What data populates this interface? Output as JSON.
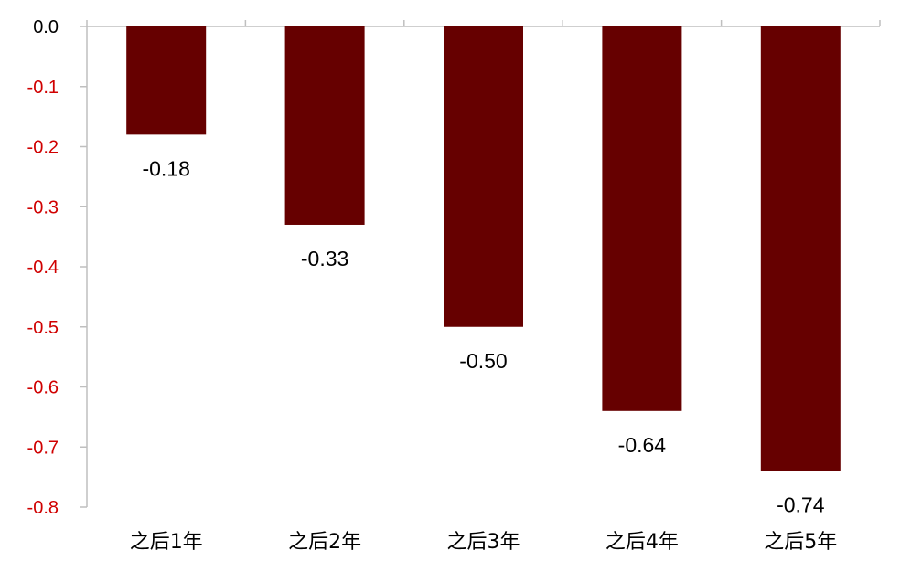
{
  "chart_data": {
    "type": "bar",
    "categories": [
      "之后1年",
      "之后2年",
      "之后3年",
      "之后4年",
      "之后5年"
    ],
    "values": [
      -0.18,
      -0.33,
      -0.5,
      -0.64,
      -0.74
    ],
    "data_labels": [
      "-0.18",
      "-0.33",
      "-0.50",
      "-0.64",
      "-0.74"
    ],
    "y_ticks": [
      "0.0",
      "-0.1",
      "-0.2",
      "-0.3",
      "-0.4",
      "-0.5",
      "-0.6",
      "-0.7",
      "-0.8"
    ],
    "ylim": [
      -0.8,
      0.0
    ],
    "title": "",
    "xlabel": "",
    "ylabel": "",
    "grid": false,
    "legend": "none",
    "colors": {
      "bar": "#660000",
      "zero_tick_label": "#000000",
      "negative_tick_label": "#d00000",
      "axis": "#bfbfbf"
    }
  }
}
